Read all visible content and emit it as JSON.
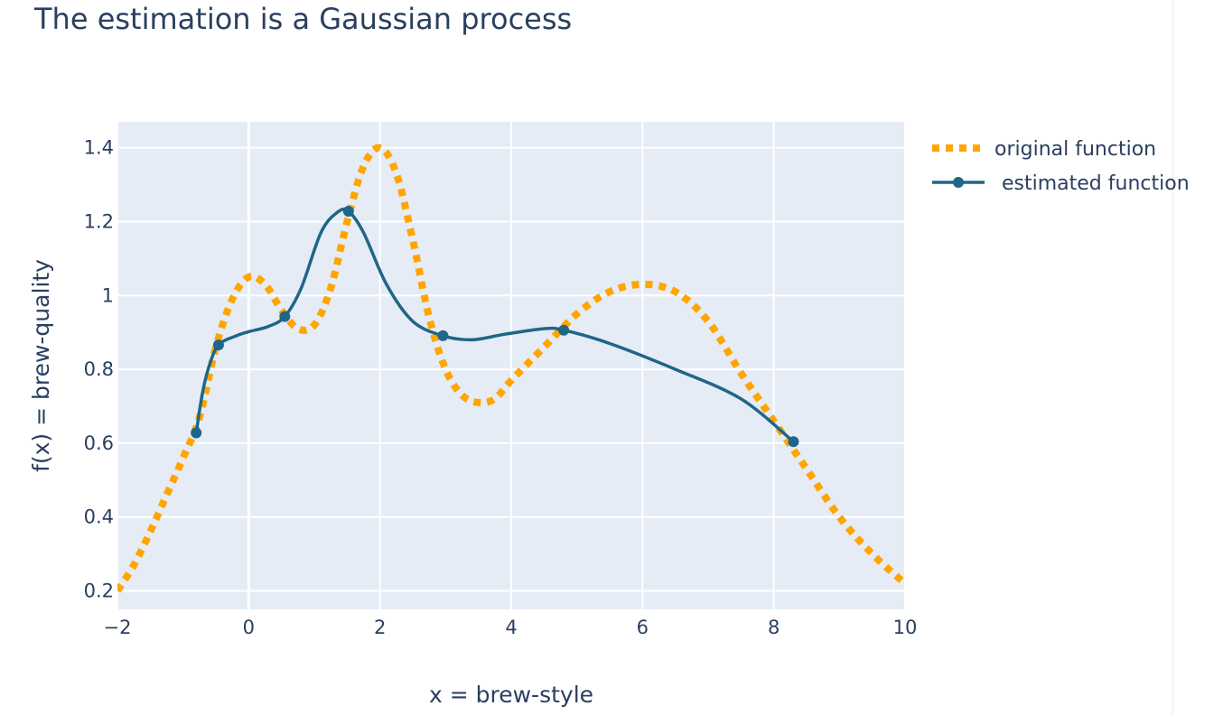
{
  "title": "The estimation is a Gaussian process",
  "chart_data": {
    "type": "line",
    "xlabel": "x = brew-style",
    "ylabel": "f(x) = brew-quality",
    "xlim": [
      -2,
      10
    ],
    "ylim": [
      0.15,
      1.47
    ],
    "x_ticks": [
      -2,
      0,
      2,
      4,
      6,
      8,
      10
    ],
    "x_tick_labels": [
      "−2",
      "0",
      "2",
      "4",
      "6",
      "8",
      "10"
    ],
    "y_ticks": [
      0.2,
      0.4,
      0.6,
      0.8,
      1.0,
      1.2,
      1.4
    ],
    "y_tick_labels": [
      "0.2",
      "0.4",
      "0.6",
      "0.8",
      "1",
      "1.2",
      "1.4"
    ],
    "grid": true,
    "legend_position": "top-right",
    "series": [
      {
        "name": "original function",
        "style": "dotted",
        "color": "#ffa500",
        "x": [
          -2,
          -1.75,
          -1.5,
          -1.25,
          -1,
          -0.75,
          -0.5,
          -0.25,
          0,
          0.25,
          0.5,
          0.75,
          1,
          1.25,
          1.5,
          1.75,
          2,
          2.25,
          2.5,
          2.75,
          3,
          3.25,
          3.5,
          3.75,
          4,
          4.5,
          5,
          5.5,
          6,
          6.5,
          7,
          7.5,
          8,
          8.5,
          9,
          9.5,
          10
        ],
        "y": [
          0.2,
          0.27,
          0.36,
          0.46,
          0.56,
          0.67,
          0.86,
          0.99,
          1.05,
          1.03,
          0.96,
          0.91,
          0.92,
          1.02,
          1.2,
          1.35,
          1.4,
          1.33,
          1.15,
          0.94,
          0.8,
          0.73,
          0.71,
          0.72,
          0.77,
          0.86,
          0.95,
          1.01,
          1.03,
          1.01,
          0.93,
          0.79,
          0.66,
          0.53,
          0.4,
          0.3,
          0.22
        ]
      },
      {
        "name": "estimated function",
        "style": "lines+markers",
        "color": "#1f6688",
        "x": [
          -0.8,
          -0.7,
          -0.6,
          -0.46,
          -0.2,
          0,
          0.3,
          0.55,
          0.8,
          1.1,
          1.35,
          1.52,
          1.75,
          2.1,
          2.5,
          2.96,
          3.4,
          3.9,
          4.5,
          4.8,
          5.5,
          6.5,
          7.5,
          8.3
        ],
        "y": [
          0.628,
          0.74,
          0.81,
          0.866,
          0.89,
          0.902,
          0.916,
          0.943,
          1.02,
          1.17,
          1.225,
          1.228,
          1.17,
          1.03,
          0.93,
          0.891,
          0.88,
          0.895,
          0.91,
          0.906,
          0.87,
          0.8,
          0.72,
          0.604
        ],
        "marker_points": [
          {
            "x": -0.8,
            "y": 0.628
          },
          {
            "x": -0.46,
            "y": 0.866
          },
          {
            "x": 0.55,
            "y": 0.943
          },
          {
            "x": 1.52,
            "y": 1.228
          },
          {
            "x": 2.96,
            "y": 0.891
          },
          {
            "x": 4.8,
            "y": 0.906
          },
          {
            "x": 8.3,
            "y": 0.604
          }
        ]
      }
    ]
  }
}
